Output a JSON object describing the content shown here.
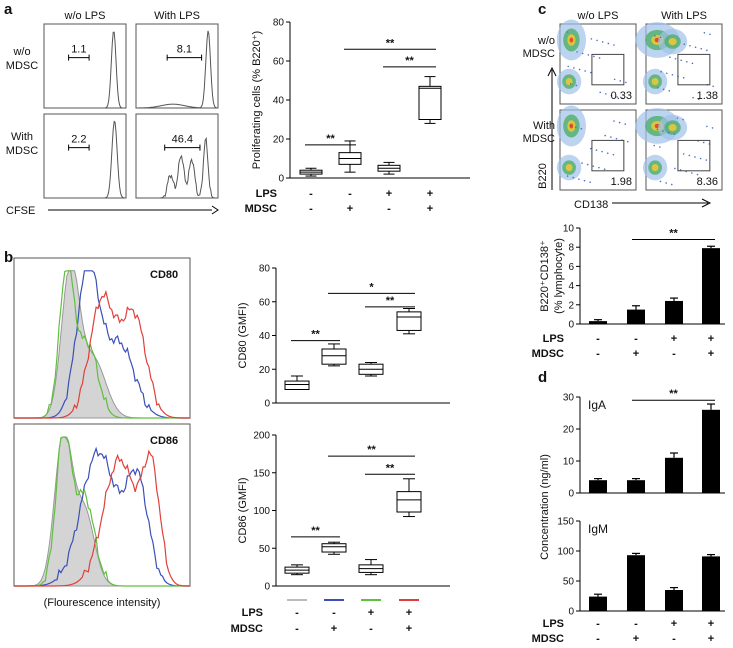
{
  "panels": {
    "a": {
      "letter": "a"
    },
    "b": {
      "letter": "b"
    },
    "c": {
      "letter": "c"
    },
    "d": {
      "letter": "d"
    }
  },
  "cond_labels": {
    "lps": "LPS",
    "mdsc": "MDSC",
    "plus": "+",
    "minus": "-"
  },
  "chart_data": [
    {
      "id": "a-hist",
      "type": "histogram-grid",
      "col_labels": [
        "w/o LPS",
        "With LPS"
      ],
      "row_labels": [
        "w/o\nMDSC",
        "With\nMDSC"
      ],
      "gate_values": [
        "1.1",
        "8.1",
        "2.2",
        "46.4"
      ],
      "xlabel": "CFSE"
    },
    {
      "id": "a-box",
      "type": "box",
      "ylabel": "Proliferating cells (% B220⁺)",
      "ylim": [
        0,
        80
      ],
      "yticks": [
        "0",
        "20",
        "40",
        "60",
        "80"
      ],
      "conditions": {
        "lps": [
          "-",
          "-",
          "+",
          "+"
        ],
        "mdsc": [
          "-",
          "+",
          "-",
          "+"
        ]
      },
      "boxes": [
        {
          "min": 1,
          "q1": 2,
          "median": 3,
          "q3": 4,
          "max": 5
        },
        {
          "min": 3,
          "q1": 7,
          "median": 10,
          "q3": 13,
          "max": 19
        },
        {
          "min": 2,
          "q1": 3.5,
          "median": 5,
          "q3": 6.5,
          "max": 8
        },
        {
          "min": 28,
          "q1": 30,
          "median": 46,
          "q3": 47,
          "max": 52
        }
      ],
      "sig": [
        {
          "from": 0,
          "to": 1,
          "label": "**",
          "y": 17
        },
        {
          "from": 2,
          "to": 3,
          "label": "**",
          "y": 57
        },
        {
          "from": 1,
          "to": 3,
          "label": "**",
          "y": 66
        }
      ]
    },
    {
      "id": "b-cd80-hist",
      "type": "histogram-overlay",
      "label": "CD80",
      "series": [
        {
          "name": "control",
          "color": "#999999"
        },
        {
          "name": "LPS",
          "color": "#3b4fb8"
        },
        {
          "name": "MDSC",
          "color": "#5fbf3f"
        },
        {
          "name": "LPS+MDSC",
          "color": "#e0403a"
        }
      ]
    },
    {
      "id": "b-cd86-hist",
      "type": "histogram-overlay",
      "label": "CD86",
      "xlabel": "(Flourescence intensity)"
    },
    {
      "id": "b-cd80-box",
      "type": "box",
      "ylabel": "CD80 (GMFI)",
      "ylim": [
        0,
        80
      ],
      "yticks": [
        "0",
        "20",
        "40",
        "60",
        "80"
      ],
      "boxes": [
        {
          "min": 8,
          "q1": 8,
          "median": 11,
          "q3": 13,
          "max": 16
        },
        {
          "min": 22,
          "q1": 23,
          "median": 28,
          "q3": 32,
          "max": 35
        },
        {
          "min": 16,
          "q1": 17,
          "median": 20,
          "q3": 23,
          "max": 24
        },
        {
          "min": 41,
          "q1": 43,
          "median": 51,
          "q3": 54,
          "max": 56
        }
      ],
      "sig": [
        {
          "from": 0,
          "to": 1,
          "label": "**",
          "y": 37
        },
        {
          "from": 2,
          "to": 3,
          "label": "**",
          "y": 57
        },
        {
          "from": 1,
          "to": 3,
          "label": "*",
          "y": 65
        }
      ]
    },
    {
      "id": "b-cd86-box",
      "type": "box",
      "ylabel": "CD86 (GMFI)",
      "ylim": [
        0,
        200
      ],
      "yticks": [
        "0",
        "50",
        "100",
        "150",
        "200"
      ],
      "boxes": [
        {
          "min": 15,
          "q1": 17,
          "median": 21,
          "q3": 25,
          "max": 28
        },
        {
          "min": 42,
          "q1": 45,
          "median": 52,
          "q3": 56,
          "max": 58
        },
        {
          "min": 15,
          "q1": 18,
          "median": 23,
          "q3": 28,
          "max": 35
        },
        {
          "min": 92,
          "q1": 98,
          "median": 114,
          "q3": 125,
          "max": 142
        }
      ],
      "sig": [
        {
          "from": 0,
          "to": 1,
          "label": "**",
          "y": 65
        },
        {
          "from": 2,
          "to": 3,
          "label": "**",
          "y": 148
        },
        {
          "from": 1,
          "to": 3,
          "label": "**",
          "y": 172
        }
      ],
      "legend_colors": [
        "#bbbbbb",
        "#3b4fb8",
        "#5fbf3f",
        "#e0403a"
      ]
    },
    {
      "id": "c-flow",
      "type": "scatter-grid",
      "col_labels": [
        "w/o LPS",
        "With LPS"
      ],
      "row_labels": [
        "w/o\nMDSC",
        "With\nMDSC"
      ],
      "gate_values": [
        "0.33",
        "1.38",
        "1.98",
        "8.36"
      ],
      "xlabel": "CD138",
      "ylabel": "B220"
    },
    {
      "id": "c-bar",
      "type": "bar",
      "ylabel": "B220⁺CD138⁺ (% lymphocyte)",
      "ylim": [
        0,
        10
      ],
      "yticks": [
        "0",
        "2",
        "4",
        "6",
        "8",
        "10"
      ],
      "values": [
        0.3,
        1.5,
        2.4,
        7.9
      ],
      "errors": [
        0.15,
        0.4,
        0.3,
        0.2
      ],
      "sig": [
        {
          "from": 1,
          "to": 3,
          "label": "**",
          "y": 8.8
        }
      ]
    },
    {
      "id": "d-iga",
      "type": "bar",
      "label": "IgA",
      "ylim": [
        0,
        30
      ],
      "yticks": [
        "0",
        "10",
        "20",
        "30"
      ],
      "values": [
        4,
        4,
        11,
        26
      ],
      "errors": [
        0.5,
        0.5,
        1.5,
        1.8
      ],
      "sig": [
        {
          "from": 1,
          "to": 3,
          "label": "**",
          "y": 29
        }
      ]
    },
    {
      "id": "d-igm",
      "type": "bar",
      "label": "IgM",
      "ylim": [
        0,
        150
      ],
      "yticks": [
        "0",
        "50",
        "100",
        "150"
      ],
      "values": [
        24,
        93,
        35,
        91
      ],
      "errors": [
        4,
        3,
        4,
        3
      ],
      "ylabel": "Concentration (ng/ml)"
    }
  ]
}
